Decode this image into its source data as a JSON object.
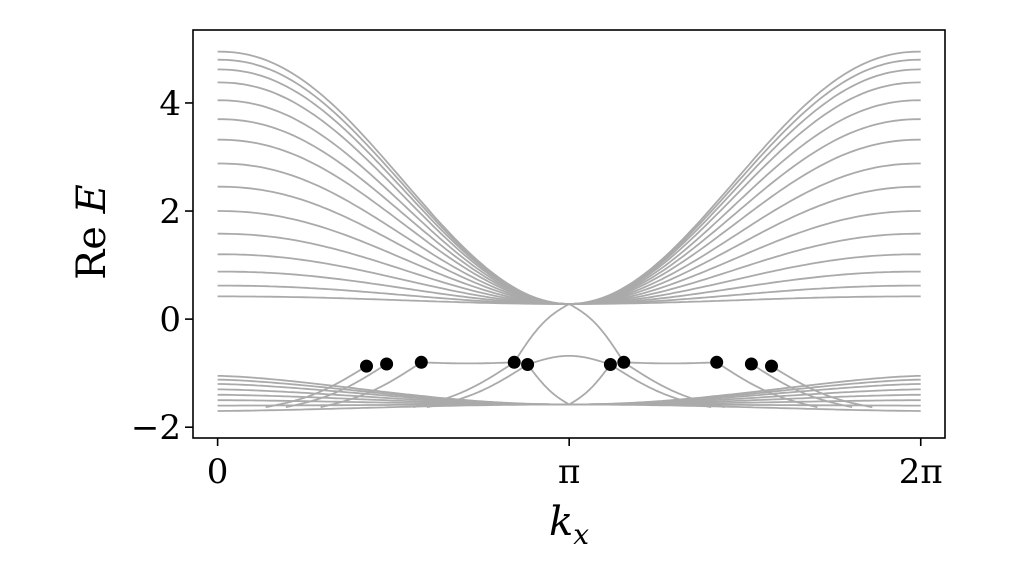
{
  "chart_data": {
    "type": "line",
    "xlabel": "k_x",
    "ylabel": "Re E",
    "xlim": [
      -0.22,
      6.5
    ],
    "ylim": [
      -2.2,
      5.35
    ],
    "x_ticks": [
      {
        "value": 0,
        "label": "0"
      },
      {
        "value": 3.14159,
        "label": "π"
      },
      {
        "value": 6.28318,
        "label": "2π"
      }
    ],
    "y_ticks": [
      {
        "value": -2,
        "label": "−2"
      },
      {
        "value": 0,
        "label": "0"
      },
      {
        "value": 2,
        "label": "2"
      },
      {
        "value": 4,
        "label": "4"
      }
    ],
    "grid": false,
    "line_color": "#aaaaaa",
    "point_color": "#000000",
    "upper_band_levels": [
      4.95,
      4.8,
      4.62,
      4.38,
      4.05,
      3.7,
      3.32,
      2.88,
      2.45,
      2.0,
      1.58,
      1.2,
      0.88,
      0.62,
      0.42
    ],
    "upper_band_crossing": {
      "x": 3.14159,
      "y": 0.28
    },
    "lower_band_levels": [
      -1.05,
      -1.12,
      -1.2,
      -1.3,
      -1.4,
      -1.5,
      -1.6,
      -1.7
    ],
    "lower_band_crossing": {
      "x": 3.14159,
      "y": -1.58
    },
    "highlighted_points": [
      {
        "x": 1.33,
        "y": -0.87
      },
      {
        "x": 1.51,
        "y": -0.83
      },
      {
        "x": 1.82,
        "y": -0.8
      },
      {
        "x": 2.65,
        "y": -0.8
      },
      {
        "x": 2.77,
        "y": -0.84
      },
      {
        "x": 3.51,
        "y": -0.84
      },
      {
        "x": 3.63,
        "y": -0.8
      },
      {
        "x": 4.46,
        "y": -0.8
      },
      {
        "x": 4.77,
        "y": -0.83
      },
      {
        "x": 4.95,
        "y": -0.87
      }
    ]
  }
}
